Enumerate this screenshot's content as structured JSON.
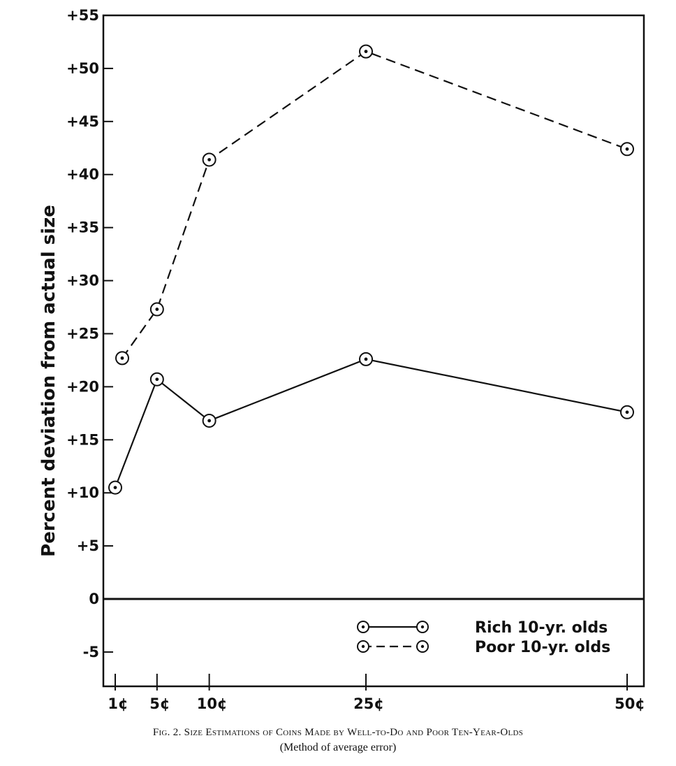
{
  "chart_data": {
    "type": "line",
    "ylabel": "Percent deviation from actual size",
    "xlabel": "",
    "categories": [
      "1¢",
      "5¢",
      "10¢",
      "25¢",
      "50¢"
    ],
    "coin_values_cents": [
      1,
      5,
      10,
      25,
      50
    ],
    "ylim": [
      -8,
      55
    ],
    "y_ticks": [
      55,
      50,
      45,
      40,
      35,
      30,
      25,
      20,
      15,
      10,
      5,
      0,
      -5
    ],
    "y_tick_labels": [
      "+55",
      "+50",
      "+45",
      "+40",
      "+35",
      "+30",
      "+25",
      "+20",
      "+15",
      "+10",
      "+5",
      "0",
      "-5"
    ],
    "series": [
      {
        "name": "Rich 10-yr. olds",
        "style": "solid",
        "values": [
          10.5,
          20.7,
          16.8,
          22.6,
          17.6
        ]
      },
      {
        "name": "Poor 10-yr. olds",
        "style": "dashed",
        "values": [
          22.7,
          27.3,
          41.4,
          51.6,
          42.4
        ]
      }
    ],
    "legend": {
      "position": "bottom-right",
      "entries": [
        "Rich 10-yr. olds",
        "Poor 10-yr. olds"
      ]
    },
    "grid": false,
    "zero_line": true
  },
  "caption": {
    "title": "Fig. 2. Size Estimations of Coins Made by Well-to-Do and Poor Ten-Year-Olds",
    "subtitle": "(Method of average error)"
  }
}
